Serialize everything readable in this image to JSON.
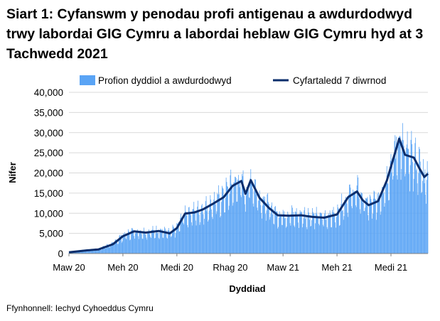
{
  "chart_data": {
    "type": "bar",
    "title": "Siart 1: Cyfanswm y penodau profi antigenau a awdurdodwyd trwy labordai GIG Cymru a labordai heblaw GIG Cymru hyd at 3 Tachwedd 2021",
    "xlabel": "Dyddiad",
    "ylabel": "Nifer",
    "ylim": [
      0,
      40000
    ],
    "yticks": [
      0,
      5000,
      10000,
      15000,
      20000,
      25000,
      30000,
      35000,
      40000
    ],
    "ytick_labels": [
      "0",
      "5,000",
      "10,000",
      "15,000",
      "20,000",
      "25,000",
      "30,000",
      "35,000",
      "40,000"
    ],
    "xticks": [
      {
        "date": "2020-03-01",
        "label": "Maw 20"
      },
      {
        "date": "2020-06-01",
        "label": "Meh 20"
      },
      {
        "date": "2020-09-01",
        "label": "Medi 20"
      },
      {
        "date": "2020-12-01",
        "label": "Rhag 20"
      },
      {
        "date": "2021-03-01",
        "label": "Maw 21"
      },
      {
        "date": "2021-06-01",
        "label": "Meh 21"
      },
      {
        "date": "2021-09-01",
        "label": "Medi 21"
      }
    ],
    "x_range": [
      "2020-03-01",
      "2021-11-03"
    ],
    "grid": "horizontal",
    "legend_position": "top",
    "series": [
      {
        "name": "Profion dyddiol a awdurdodwyd",
        "kind": "bar",
        "color": "#5aa4f5",
        "trend": [
          {
            "date": "2020-03-01",
            "value": 300
          },
          {
            "date": "2020-04-01",
            "value": 900
          },
          {
            "date": "2020-04-20",
            "value": 1100
          },
          {
            "date": "2020-05-15",
            "value": 2500
          },
          {
            "date": "2020-06-01",
            "value": 4500
          },
          {
            "date": "2020-06-20",
            "value": 5600
          },
          {
            "date": "2020-07-10",
            "value": 5300
          },
          {
            "date": "2020-08-01",
            "value": 5700
          },
          {
            "date": "2020-08-20",
            "value": 5100
          },
          {
            "date": "2020-09-01",
            "value": 6500
          },
          {
            "date": "2020-09-15",
            "value": 10200
          },
          {
            "date": "2020-10-01",
            "value": 10400
          },
          {
            "date": "2020-10-15",
            "value": 11000
          },
          {
            "date": "2020-11-01",
            "value": 12600
          },
          {
            "date": "2020-11-20",
            "value": 14500
          },
          {
            "date": "2020-12-05",
            "value": 17200
          },
          {
            "date": "2020-12-20",
            "value": 18300
          },
          {
            "date": "2020-12-27",
            "value": 15000
          },
          {
            "date": "2021-01-05",
            "value": 18500
          },
          {
            "date": "2021-01-20",
            "value": 14000
          },
          {
            "date": "2021-02-05",
            "value": 11600
          },
          {
            "date": "2021-02-20",
            "value": 9800
          },
          {
            "date": "2021-03-10",
            "value": 9700
          },
          {
            "date": "2021-04-01",
            "value": 9800
          },
          {
            "date": "2021-04-20",
            "value": 9400
          },
          {
            "date": "2021-05-10",
            "value": 9200
          },
          {
            "date": "2021-06-01",
            "value": 10000
          },
          {
            "date": "2021-06-20",
            "value": 14300
          },
          {
            "date": "2021-07-05",
            "value": 15800
          },
          {
            "date": "2021-07-15",
            "value": 13500
          },
          {
            "date": "2021-07-25",
            "value": 12300
          },
          {
            "date": "2021-08-10",
            "value": 13300
          },
          {
            "date": "2021-08-25",
            "value": 18500
          },
          {
            "date": "2021-09-05",
            "value": 24000
          },
          {
            "date": "2021-09-15",
            "value": 28600
          },
          {
            "date": "2021-09-25",
            "value": 25000
          },
          {
            "date": "2021-10-10",
            "value": 24000
          },
          {
            "date": "2021-10-20",
            "value": 21500
          },
          {
            "date": "2021-10-28",
            "value": 19200
          },
          {
            "date": "2021-11-03",
            "value": 20000
          }
        ]
      },
      {
        "name": "Cyfartaledd 7 diwrnod",
        "kind": "line",
        "color": "#0b2d6b",
        "points": [
          {
            "date": "2020-03-01",
            "value": 300
          },
          {
            "date": "2020-04-01",
            "value": 800
          },
          {
            "date": "2020-04-20",
            "value": 1000
          },
          {
            "date": "2020-05-15",
            "value": 2300
          },
          {
            "date": "2020-06-01",
            "value": 4300
          },
          {
            "date": "2020-06-20",
            "value": 5500
          },
          {
            "date": "2020-07-10",
            "value": 5200
          },
          {
            "date": "2020-08-01",
            "value": 5600
          },
          {
            "date": "2020-08-20",
            "value": 5000
          },
          {
            "date": "2020-09-01",
            "value": 6300
          },
          {
            "date": "2020-09-15",
            "value": 9900
          },
          {
            "date": "2020-10-01",
            "value": 10200
          },
          {
            "date": "2020-10-15",
            "value": 10900
          },
          {
            "date": "2020-11-01",
            "value": 12300
          },
          {
            "date": "2020-11-20",
            "value": 14000
          },
          {
            "date": "2020-12-05",
            "value": 16800
          },
          {
            "date": "2020-12-20",
            "value": 18000
          },
          {
            "date": "2020-12-27",
            "value": 14800
          },
          {
            "date": "2021-01-05",
            "value": 18200
          },
          {
            "date": "2021-01-20",
            "value": 13800
          },
          {
            "date": "2021-02-05",
            "value": 11300
          },
          {
            "date": "2021-02-20",
            "value": 9500
          },
          {
            "date": "2021-03-10",
            "value": 9400
          },
          {
            "date": "2021-04-01",
            "value": 9500
          },
          {
            "date": "2021-04-20",
            "value": 9100
          },
          {
            "date": "2021-05-10",
            "value": 8900
          },
          {
            "date": "2021-06-01",
            "value": 9700
          },
          {
            "date": "2021-06-20",
            "value": 14000
          },
          {
            "date": "2021-07-05",
            "value": 15400
          },
          {
            "date": "2021-07-15",
            "value": 13200
          },
          {
            "date": "2021-07-25",
            "value": 12000
          },
          {
            "date": "2021-08-10",
            "value": 13000
          },
          {
            "date": "2021-08-25",
            "value": 18100
          },
          {
            "date": "2021-09-05",
            "value": 23500
          },
          {
            "date": "2021-09-15",
            "value": 28500
          },
          {
            "date": "2021-09-25",
            "value": 24500
          },
          {
            "date": "2021-10-10",
            "value": 23800
          },
          {
            "date": "2021-10-20",
            "value": 21000
          },
          {
            "date": "2021-10-28",
            "value": 19000
          },
          {
            "date": "2021-11-03",
            "value": 19800
          }
        ]
      }
    ],
    "source": "Ffynhonnell: Iechyd Cyhoeddus Cymru"
  }
}
